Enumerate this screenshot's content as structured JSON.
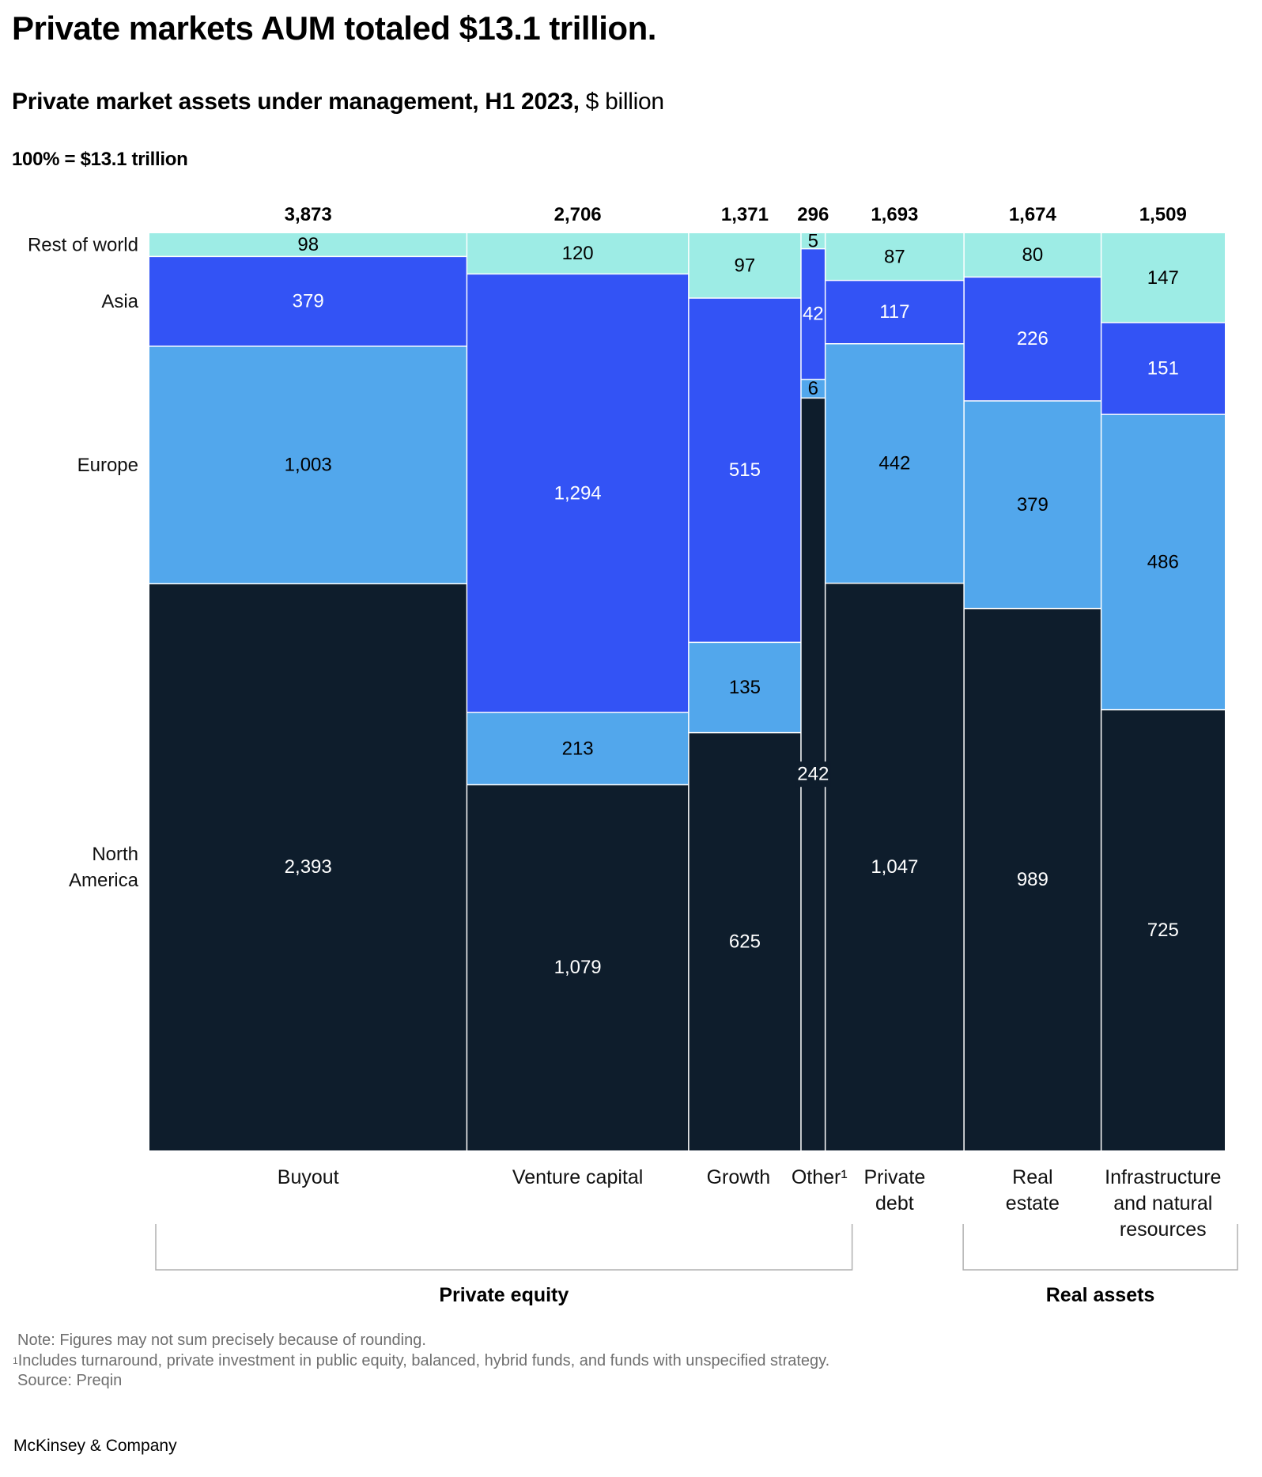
{
  "header": {
    "title": "Private markets AUM totaled $13.1 trillion.",
    "subtitle_bold": "Private market assets under management, H1 2023,",
    "subtitle_unit": " $ billion",
    "base_note": "100% = $13.1 trillion"
  },
  "colors": {
    "rest_of_world": "#9DECE5",
    "asia": "#3353F5",
    "europe": "#52A7EC",
    "north_america": "#0E1D2C",
    "divider": "#ffffff",
    "dark_text": "#000000",
    "light_text": "#ffffff"
  },
  "chart_data": {
    "type": "mosaic (marimekko / variable-width 100% stacked bar)",
    "title": "Private market assets under management, H1 2023, $ billion",
    "subtitle": "100% = $13.1 trillion",
    "unit": "$ billion",
    "categories": [
      "Buyout",
      "Venture capital",
      "Growth",
      "Other¹",
      "Private debt",
      "Real estate",
      "Infrastructure and natural resources"
    ],
    "category_lines": [
      [
        "Buyout"
      ],
      [
        "Venture capital"
      ],
      [
        "Growth"
      ],
      [
        "Other¹"
      ],
      [
        "Private",
        "debt"
      ],
      [
        "Real",
        "estate"
      ],
      [
        "Infrastructure",
        "and natural",
        "resources"
      ]
    ],
    "totals": [
      3873,
      2706,
      1371,
      296,
      1693,
      1674,
      1509
    ],
    "total_labels": [
      "3,873",
      "2,706",
      "1,371",
      "296",
      "1,693",
      "1,674",
      "1,509"
    ],
    "series": [
      {
        "name": "Rest of world",
        "key": "rest_of_world",
        "values": [
          98,
          120,
          97,
          5,
          87,
          80,
          147
        ],
        "labels": [
          "98",
          "120",
          "97",
          "5",
          "87",
          "80",
          "147"
        ]
      },
      {
        "name": "Asia",
        "key": "asia",
        "values": [
          379,
          1294,
          515,
          42,
          117,
          226,
          151
        ],
        "labels": [
          "379",
          "1,294",
          "515",
          "42",
          "117",
          "226",
          "151"
        ]
      },
      {
        "name": "Europe",
        "key": "europe",
        "values": [
          1003,
          213,
          135,
          6,
          442,
          379,
          486
        ],
        "labels": [
          "1,003",
          "213",
          "135",
          "6",
          "442",
          "379",
          "486"
        ]
      },
      {
        "name": "North America",
        "key": "north_america",
        "values": [
          2393,
          1079,
          625,
          242,
          1047,
          989,
          725
        ],
        "labels": [
          "2,393",
          "1,079",
          "625",
          "242",
          "1,047",
          "989",
          "725"
        ]
      }
    ],
    "row_labels": [
      [
        "Rest of world"
      ],
      [
        "Asia"
      ],
      [
        "Europe"
      ],
      [
        "North",
        "America"
      ]
    ],
    "stack_order": "top-to-bottom: Rest of world, Asia, Europe, North America",
    "groups": [
      {
        "name": "Private equity",
        "categories": [
          "Buyout",
          "Venture capital",
          "Growth",
          "Other¹"
        ]
      },
      {
        "name": "Real assets",
        "categories": [
          "Real estate",
          "Infrastructure and natural resources"
        ]
      }
    ],
    "legend": "left (row labels)",
    "grid": false
  },
  "footer": {
    "note": "Note: Figures may not sum precisely because of rounding.",
    "footnote_marker": "1",
    "footnote_1": "Includes turnaround, private investment in public equity, balanced, hybrid funds, and funds with unspecified strategy.",
    "source": "Source: Preqin",
    "brand": "McKinsey & Company"
  }
}
